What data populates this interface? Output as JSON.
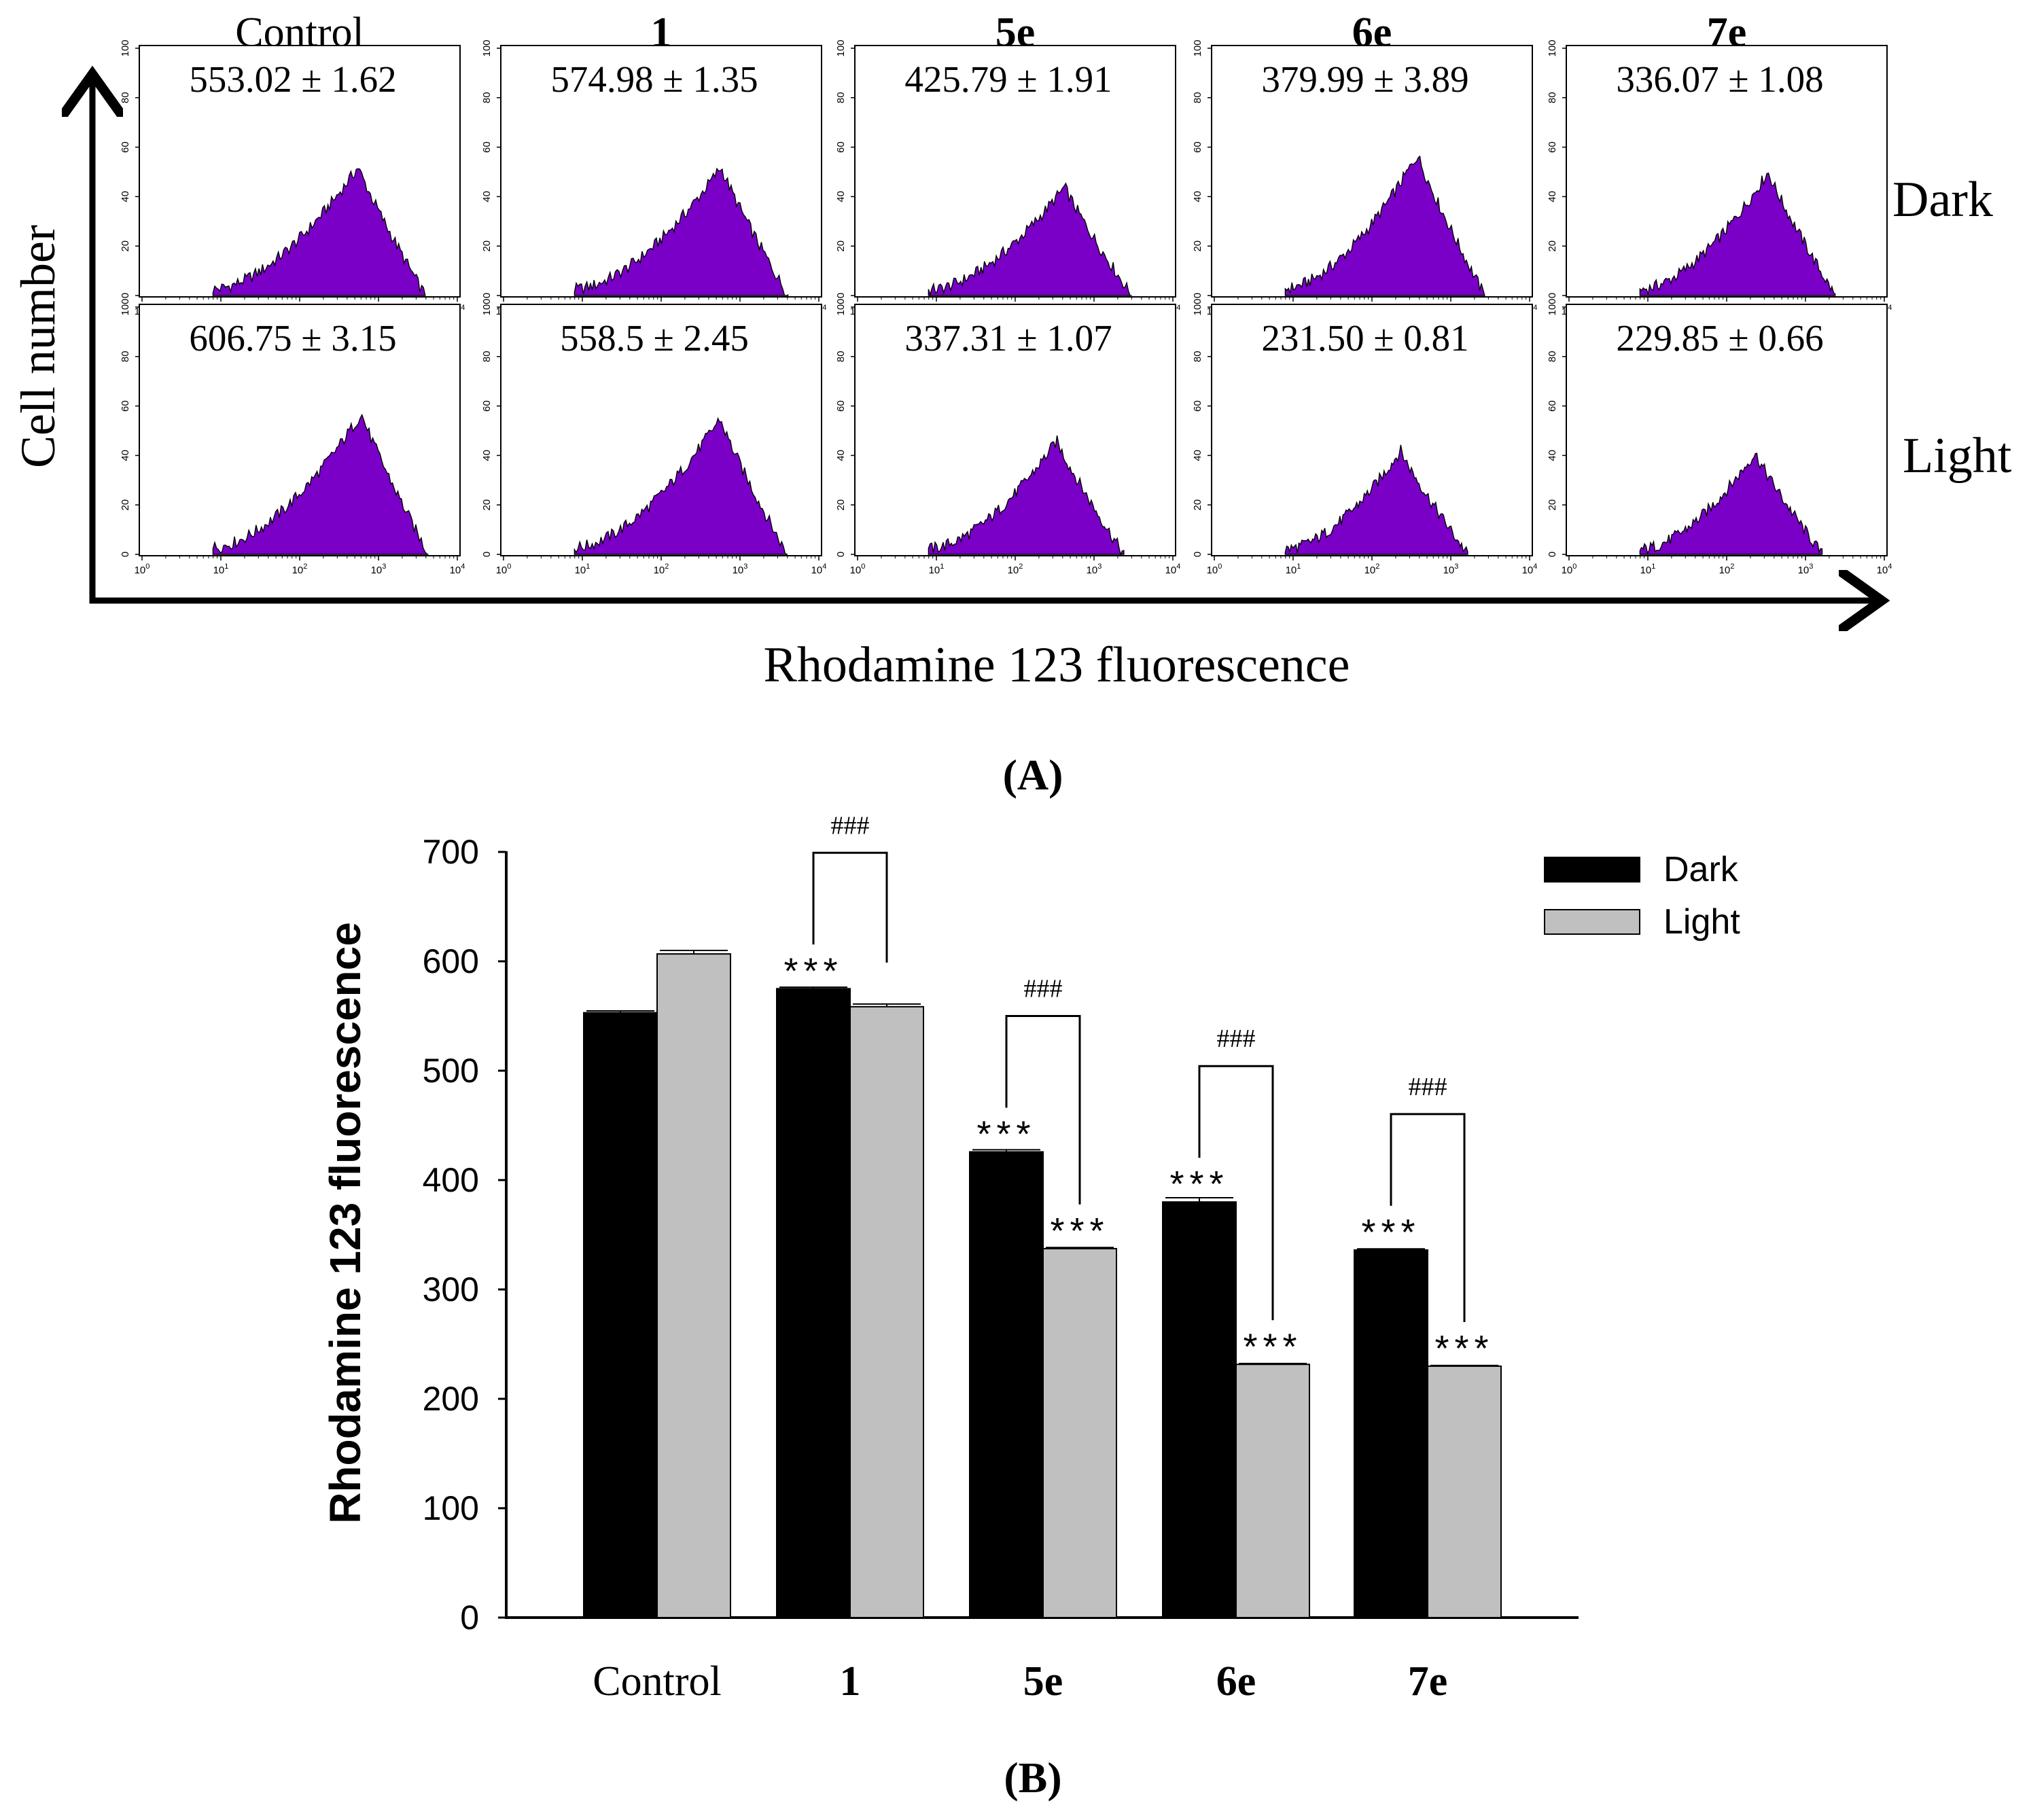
{
  "panel_a": {
    "label": "(A)",
    "y_axis_label": "Cell number",
    "x_axis_label": "Rhodamine 123 fluorescence",
    "column_headers": [
      "Control",
      "1",
      "5e",
      "6e",
      "7e"
    ],
    "row_labels": [
      "Dark",
      "Light"
    ],
    "hist_y_ticks": [
      "0",
      "20",
      "40",
      "60",
      "80",
      "100"
    ],
    "hist_x_ticks": [
      "10",
      "10",
      "10",
      "10",
      "10"
    ],
    "hist_x_tick_exponents": [
      "0",
      "1",
      "2",
      "3",
      "4"
    ],
    "histogram_color": "#7a00c8",
    "panels": [
      [
        {
          "label": "553.02 ± 1.62",
          "mean": 553.02,
          "peak_height": 52
        },
        {
          "label": "574.98 ± 1.35",
          "mean": 574.98,
          "peak_height": 52
        },
        {
          "label": "425.79 ± 1.91",
          "mean": 425.79,
          "peak_height": 44
        },
        {
          "label": "379.99 ± 3.89",
          "mean": 379.99,
          "peak_height": 57
        },
        {
          "label": "336.07 ± 1.08",
          "mean": 336.07,
          "peak_height": 50
        }
      ],
      [
        {
          "label": "606.75 ± 3.15",
          "mean": 606.75,
          "peak_height": 57
        },
        {
          "label": "558.5 ± 2.45",
          "mean": 558.5,
          "peak_height": 55
        },
        {
          "label": "337.31 ± 1.07",
          "mean": 337.31,
          "peak_height": 46
        },
        {
          "label": "231.50 ± 0.81",
          "mean": 231.5,
          "peak_height": 42
        },
        {
          "label": "229.85 ± 0.66",
          "mean": 229.85,
          "peak_height": 41
        }
      ]
    ]
  },
  "panel_b": {
    "label": "(B)"
  },
  "chart_data": {
    "type": "bar",
    "title": "",
    "xlabel": "",
    "ylabel": "Rhodamine 123 fluorescence",
    "categories": [
      "Control",
      "1",
      "5e",
      "6e",
      "7e"
    ],
    "ylim": [
      0,
      700
    ],
    "yticks": [
      0,
      100,
      200,
      300,
      400,
      500,
      600,
      700
    ],
    "grid": false,
    "legend_position": "top-right",
    "series": [
      {
        "name": "Dark",
        "color": "#000000",
        "values": [
          553.02,
          574.98,
          425.79,
          379.99,
          336.07
        ],
        "errors": [
          1.62,
          1.35,
          1.91,
          3.89,
          1.08
        ]
      },
      {
        "name": "Light",
        "color": "#c0c0c0",
        "values": [
          606.75,
          558.5,
          337.31,
          231.5,
          229.85
        ],
        "errors": [
          3.15,
          2.45,
          1.07,
          0.81,
          0.66
        ]
      }
    ],
    "significance": {
      "dark": [
        "",
        "***",
        "***",
        "***",
        "***"
      ],
      "light": [
        "",
        "",
        "***",
        "***",
        "***"
      ],
      "pair": [
        "",
        "###",
        "###",
        "###",
        "###"
      ]
    }
  }
}
